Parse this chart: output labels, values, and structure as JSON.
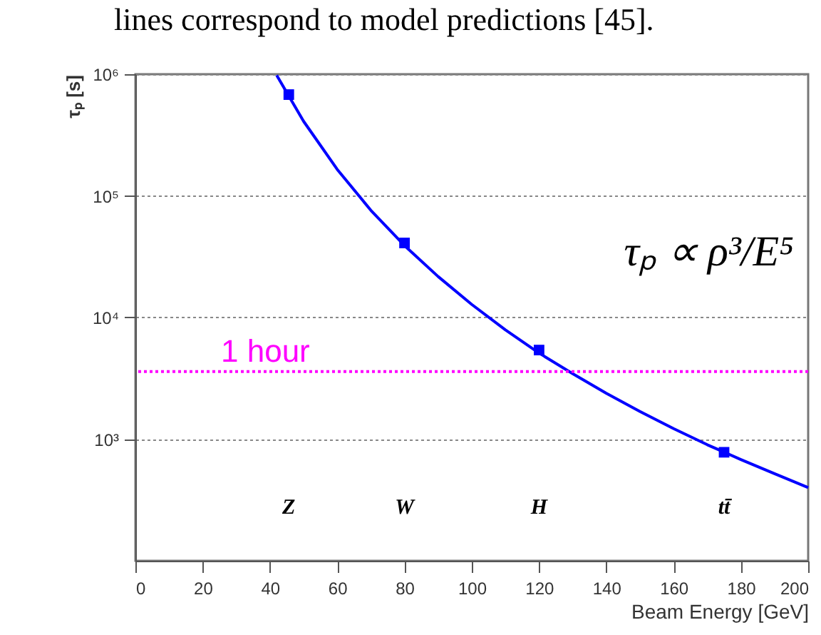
{
  "chart_data": {
    "type": "line",
    "xlabel": "Beam Energy [GeV]",
    "ylabel": "τₚ [s]",
    "xlim": [
      0,
      200
    ],
    "xticks": [
      0,
      20,
      40,
      60,
      80,
      100,
      120,
      140,
      160,
      180,
      200
    ],
    "ylim": [
      100,
      1000000
    ],
    "yticks": [
      {
        "value": 1000,
        "label": "10³"
      },
      {
        "value": 10000,
        "label": "10⁴"
      },
      {
        "value": 100000,
        "label": "10⁵"
      },
      {
        "value": 1000000,
        "label": "10⁶"
      }
    ],
    "log": "y",
    "grid": "y",
    "series": [
      {
        "color": "#0000ff",
        "marker": "none",
        "x": [
          42,
          50,
          60,
          70,
          80,
          90,
          100,
          110,
          120,
          130,
          140,
          150,
          160,
          170,
          180,
          190,
          200
        ],
        "values": [
          980000,
          410000,
          165000,
          76000,
          39000,
          21700,
          12800,
          7900,
          5100,
          3450,
          2380,
          1690,
          1220,
          900,
          680,
          520,
          400
        ]
      },
      {
        "type": "scatter",
        "color": "#0000ff",
        "marker": "square",
        "x": [
          45.6,
          80,
          120,
          175
        ],
        "values": [
          680000,
          41000,
          5400,
          780
        ]
      }
    ],
    "ref_lines": [
      {
        "axis": "y",
        "value": 3600,
        "label": "1 hour",
        "color": "#ff00ff",
        "line_style": "dotted"
      }
    ],
    "annotations": [
      "lines correspond to model predictions [45].",
      "Z",
      "W",
      "H",
      "tt̄",
      "τₚ ∝ ρ³/E⁵"
    ]
  }
}
